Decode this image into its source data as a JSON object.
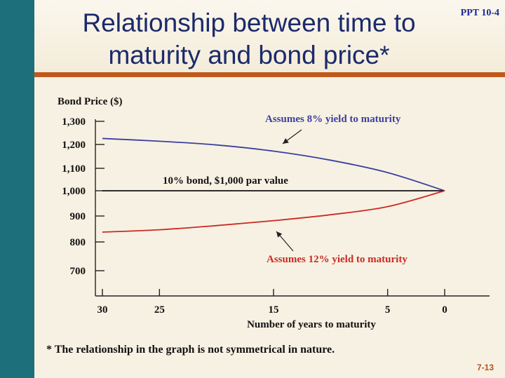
{
  "slide": {
    "title_line1": "Relationship between time to",
    "title_line2": "maturity and bond price*",
    "code": "PPT 10-4",
    "footnote": "* The relationship in the graph is not symmetrical in nature.",
    "slide_number": "7-13"
  },
  "colors": {
    "title": "#1b2a6b",
    "accent_rule": "#c05a1c",
    "side_bar": "#1d6f7b",
    "series_8": "#3c3f9e",
    "series_10": "#111111",
    "series_12": "#cc2a22"
  },
  "chart_data": {
    "type": "line",
    "ylabel": "Bond Price ($)",
    "xlabel": "Number of years to maturity",
    "x_reversed": true,
    "xlim": [
      30,
      0
    ],
    "x_ticks": [
      30,
      25,
      15,
      5,
      0
    ],
    "y_ticks": [
      {
        "value": 1300,
        "label": "1,300"
      },
      {
        "value": 1200,
        "label": "1,200"
      },
      {
        "value": 1100,
        "label": "1,100"
      },
      {
        "value": 1000,
        "label": "1,000"
      },
      {
        "value": 900,
        "label": "900"
      },
      {
        "value": 800,
        "label": "800"
      },
      {
        "value": 700,
        "label": "700"
      }
    ],
    "series": [
      {
        "name": "Assumes 8% yield to maturity",
        "color_key": "series_8",
        "x": [
          30,
          25,
          20,
          15,
          10,
          5,
          0
        ],
        "y": [
          1226,
          1214,
          1198,
          1172,
          1134,
          1081,
          1000
        ]
      },
      {
        "name": "10% bond, $1,000 par value",
        "color_key": "series_10",
        "x": [
          30,
          0
        ],
        "y": [
          1000,
          1000
        ]
      },
      {
        "name": "Assumes 12% yield to maturity",
        "color_key": "series_12",
        "x": [
          30,
          25,
          20,
          15,
          10,
          5,
          0
        ],
        "y": [
          838,
          847,
          863,
          882,
          905,
          937,
          1000
        ]
      }
    ]
  }
}
